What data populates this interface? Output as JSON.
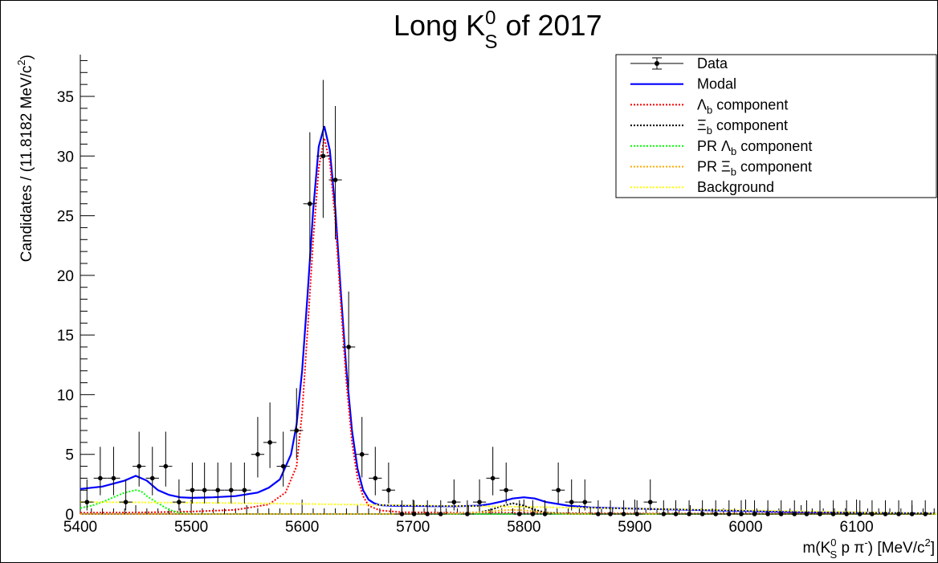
{
  "chart_data": {
    "type": "line",
    "title": "Long K<sub>S</sub><sup>0</sup> of 2017",
    "title_parts": {
      "main": "Long K",
      "sup": "0",
      "sub": "S",
      "rest": " of 2017"
    },
    "xlabel_parts": {
      "a": "m(K",
      "sup": "0",
      "sub": "S",
      "b": " p π",
      "sup2": "-",
      "c": ") [MeV/c",
      "sup3": "2",
      "d": "]"
    },
    "ylabel_parts": {
      "a": "Candidates / (11.8182 MeV/c",
      "sup": "2",
      "b": ")"
    },
    "xlim": [
      5400,
      6172
    ],
    "ylim": [
      0,
      38.5
    ],
    "x_ticks": [
      5400,
      5500,
      5600,
      5700,
      5800,
      5900,
      6000,
      6100
    ],
    "y_ticks": [
      0,
      5,
      10,
      15,
      20,
      25,
      30,
      35
    ],
    "bin_width": 11.8182,
    "data_points": {
      "x": [
        5406,
        5418,
        5430,
        5441,
        5453,
        5465,
        5477,
        5489,
        5501,
        5512,
        5524,
        5536,
        5548,
        5560,
        5571,
        5583,
        5595,
        5607,
        5619,
        5630,
        5642,
        5654,
        5666,
        5678,
        5690,
        5701,
        5713,
        5725,
        5737,
        5749,
        5760,
        5772,
        5784,
        5796,
        5808,
        5819,
        5831,
        5843,
        5855,
        5867,
        5878,
        5890,
        5902,
        5914,
        5926,
        5937,
        5949,
        5961,
        5973,
        5985,
        5996,
        6008,
        6020,
        6032,
        6044,
        6055,
        6067,
        6079,
        6091,
        6103,
        6114,
        6126,
        6138,
        6150,
        6162
      ],
      "y": [
        1,
        3,
        3,
        1,
        4,
        3,
        4,
        1,
        2,
        2,
        2,
        2,
        2,
        5,
        6,
        4,
        7,
        26,
        30,
        28,
        14,
        5,
        3,
        2,
        0,
        0,
        0,
        0,
        1,
        0,
        1,
        3,
        2,
        0,
        0,
        0,
        2,
        1,
        1,
        0,
        0,
        0,
        0,
        1,
        0,
        0,
        0,
        0,
        0,
        0,
        0,
        0,
        0,
        0,
        0,
        0,
        0,
        0,
        0,
        0,
        0,
        0,
        0,
        0,
        0
      ]
    },
    "series": [
      {
        "name": "Data",
        "color": "#000000",
        "style": "marker-errorbar"
      },
      {
        "name": "Modal",
        "color": "#0000ff",
        "style": "solid",
        "x": [
          5400,
          5420,
          5440,
          5450,
          5460,
          5470,
          5480,
          5490,
          5500,
          5520,
          5540,
          5560,
          5570,
          5580,
          5590,
          5595,
          5600,
          5605,
          5610,
          5615,
          5620,
          5625,
          5630,
          5635,
          5640,
          5645,
          5650,
          5655,
          5660,
          5665,
          5670,
          5680,
          5700,
          5720,
          5740,
          5760,
          5770,
          5780,
          5790,
          5800,
          5810,
          5820,
          5840,
          5860,
          5880,
          5900,
          5950,
          6000,
          6050,
          6100,
          6172
        ],
        "y": [
          2.1,
          2.3,
          2.8,
          3.2,
          2.8,
          2.0,
          1.6,
          1.4,
          1.35,
          1.4,
          1.5,
          1.8,
          2.2,
          2.9,
          5.0,
          7.5,
          12.0,
          18.5,
          25.5,
          30.8,
          32.5,
          30.5,
          25.5,
          18.5,
          12.0,
          7.0,
          3.8,
          2.0,
          1.2,
          0.9,
          0.75,
          0.7,
          0.68,
          0.65,
          0.65,
          0.7,
          0.85,
          1.05,
          1.3,
          1.4,
          1.3,
          1.0,
          0.7,
          0.55,
          0.5,
          0.45,
          0.35,
          0.25,
          0.15,
          0.1,
          0.05
        ]
      },
      {
        "name": "Λ<sub>b</sub> component",
        "label_parts": {
          "a": "Λ",
          "sub": "b",
          "b": " component"
        },
        "color": "#ff0000",
        "style": "dotted",
        "x": [
          5400,
          5450,
          5500,
          5540,
          5570,
          5585,
          5595,
          5600,
          5605,
          5610,
          5615,
          5620,
          5625,
          5630,
          5635,
          5640,
          5645,
          5650,
          5655,
          5660,
          5670,
          5690,
          5740,
          5800,
          5900,
          6172
        ],
        "y": [
          0.1,
          0.12,
          0.2,
          0.35,
          0.8,
          1.8,
          4.0,
          8.5,
          15.5,
          23.0,
          29.0,
          31.5,
          29.5,
          24.5,
          17.5,
          11.0,
          6.0,
          3.0,
          1.5,
          0.7,
          0.3,
          0.15,
          0.1,
          0.08,
          0.05,
          0.02
        ]
      },
      {
        "name": "Ξ<sub>b</sub> component",
        "label_parts": {
          "a": "Ξ",
          "sub": "b",
          "b": " component"
        },
        "color": "#000000",
        "style": "dotted",
        "x": [
          5400,
          5700,
          5740,
          5760,
          5770,
          5780,
          5790,
          5800,
          5810,
          5820,
          5840,
          5900,
          6172
        ],
        "y": [
          0.0,
          0.0,
          0.05,
          0.15,
          0.35,
          0.65,
          0.9,
          0.7,
          0.35,
          0.12,
          0.02,
          0.0,
          0.0
        ]
      },
      {
        "name": "PR Λ<sub>b</sub> component",
        "label_parts": {
          "a": "PR Λ",
          "sub": "b",
          "b": " component"
        },
        "color": "#00ff00",
        "style": "dotted",
        "x": [
          5400,
          5410,
          5420,
          5430,
          5440,
          5450,
          5455,
          5460,
          5470,
          5480,
          5490,
          5500,
          6172
        ],
        "y": [
          0.5,
          0.7,
          1.0,
          1.4,
          1.8,
          2.0,
          1.9,
          1.5,
          0.9,
          0.35,
          0.08,
          0.0,
          0.0
        ]
      },
      {
        "name": "PR Ξ<sub>b</sub> component",
        "label_parts": {
          "a": "PR Ξ",
          "sub": "b",
          "b": " component"
        },
        "color": "#ffaa00",
        "style": "dotted",
        "x": [
          5400,
          5700,
          5740,
          5760,
          5780,
          5790,
          5800,
          5820,
          5840,
          6172
        ],
        "y": [
          0.0,
          0.0,
          0.05,
          0.15,
          0.3,
          0.35,
          0.3,
          0.12,
          0.02,
          0.0
        ]
      },
      {
        "name": "Background",
        "color": "#ffff00",
        "style": "dotted",
        "x": [
          5400,
          5500,
          5600,
          5700,
          5800,
          5900,
          6000,
          6100,
          6172
        ],
        "y": [
          1.0,
          0.95,
          0.85,
          0.72,
          0.6,
          0.45,
          0.3,
          0.15,
          0.05
        ]
      }
    ],
    "legend_position": "top-right",
    "grid": false
  }
}
